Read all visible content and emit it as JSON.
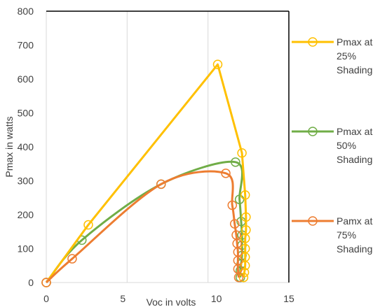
{
  "chart_data": {
    "type": "scatter",
    "title": "",
    "xlabel": "Voc in volts",
    "ylabel": "Pmax in watts",
    "xlim": [
      0,
      15
    ],
    "ylim": [
      0,
      800
    ],
    "xticks": [
      0,
      5,
      10,
      15
    ],
    "yticks": [
      0,
      100,
      200,
      300,
      400,
      500,
      600,
      700,
      800
    ],
    "grid": "vertical",
    "legend_position": "right",
    "series": [
      {
        "name": "Pmax at 25% Shading",
        "legend_lines": [
          "Pmax at",
          "25%",
          "Shading"
        ],
        "color": "#FFC000",
        "x": [
          0,
          2.6,
          10.6,
          12.1,
          12.3,
          12.35,
          12.35,
          12.3,
          12.3,
          12.3,
          12.3,
          12.25,
          12.2
        ],
        "y": [
          0,
          170,
          643,
          382,
          258,
          193,
          155,
          130,
          100,
          75,
          50,
          30,
          15
        ]
      },
      {
        "name": "Pmax at 50% Shading",
        "legend_lines": [
          "Pmax at",
          "50%",
          "Shading"
        ],
        "color": "#70AD47",
        "x": [
          0,
          2.2,
          7.1,
          11.7,
          11.95,
          12.05,
          12.1,
          12.1,
          12.1,
          12.05,
          12.0,
          12.0
        ],
        "y": [
          0,
          125,
          290,
          355,
          245,
          180,
          140,
          110,
          80,
          55,
          35,
          15
        ]
      },
      {
        "name": "Pamx at 75% Shading",
        "legend_lines": [
          "Pamx at",
          "75%",
          "Shading"
        ],
        "color": "#ED7D31",
        "x": [
          0,
          1.6,
          7.1,
          11.1,
          11.5,
          11.65,
          11.75,
          11.8,
          11.85,
          11.85,
          11.85,
          11.9
        ],
        "y": [
          0,
          70,
          290,
          322,
          228,
          173,
          140,
          115,
          90,
          65,
          40,
          15
        ]
      }
    ]
  }
}
